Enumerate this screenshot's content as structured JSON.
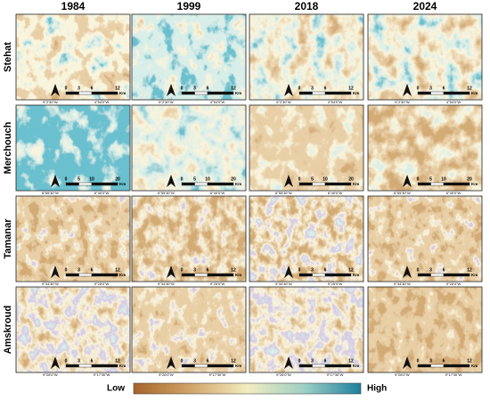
{
  "header": {
    "columns": [
      "1984",
      "1999",
      "2018",
      "2024"
    ]
  },
  "rows": [
    {
      "label": "Stehat",
      "scale": [
        "0",
        "3",
        "6",
        "12",
        "Km"
      ],
      "coords": [
        "5°2'30\"W",
        "4°54'0\"W"
      ]
    },
    {
      "label": "Merchouch",
      "scale": [
        "0",
        "5",
        "10",
        "20",
        "Km"
      ],
      "coords": [
        "6°55'30\"W",
        "6°40'0\"W"
      ]
    },
    {
      "label": "Tamanar",
      "scale": [
        "0",
        "3",
        "6",
        "12",
        "Km"
      ],
      "coords": [
        "9°34'30\"W",
        "9°25'0\"W"
      ]
    },
    {
      "label": "Amskroud",
      "scale": [
        "0",
        "3",
        "6",
        "12",
        "Km"
      ],
      "coords": [
        "9°26'0\"W",
        "9°17'30\"W"
      ]
    }
  ],
  "legend": {
    "low": "Low",
    "high": "High"
  }
}
